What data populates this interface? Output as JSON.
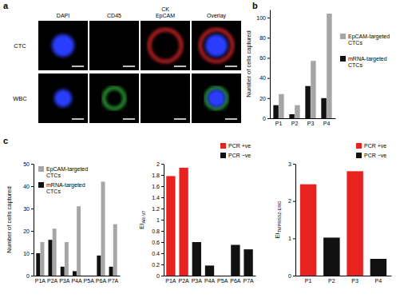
{
  "images": {
    "panel_label": "a",
    "columns": [
      [
        "DAPI"
      ],
      [
        "CD45"
      ],
      [
        "CK",
        "EpCAM"
      ],
      [
        "Overlay"
      ]
    ],
    "rows": [
      "CTC",
      "WBC"
    ]
  },
  "chart_data": [
    {
      "type": "bar",
      "panel_label": "b",
      "categories": [
        "P1",
        "P2",
        "P3",
        "P4"
      ],
      "series": [
        {
          "name": "EpCAM-targeted CTCs",
          "color": "#a6a6a6",
          "values": [
            24,
            13,
            57,
            104
          ]
        },
        {
          "name": "mRNA-targeted CTCs",
          "color": "#111111",
          "values": [
            13,
            4,
            32,
            20
          ]
        }
      ],
      "y_label": "Number of cells captured",
      "ylim": [
        0,
        108
      ],
      "yticks": [
        0,
        20,
        40,
        60,
        80,
        100
      ],
      "legend": "right"
    },
    {
      "type": "bar",
      "panel_label": "c",
      "categories": [
        "P1A",
        "P2A",
        "P3A",
        "P4A",
        "P5A",
        "P6A",
        "P7A"
      ],
      "series": [
        {
          "name": "EpCAM-targeted CTCs",
          "color": "#a6a6a6",
          "values": [
            15,
            21,
            15,
            31,
            0,
            42,
            23
          ]
        },
        {
          "name": "mRNA-targeted CTCs",
          "color": "#111111",
          "values": [
            10,
            16,
            4,
            2,
            0,
            9,
            4
          ]
        }
      ],
      "y_label": "Number of cells captured",
      "ylim": [
        0,
        50
      ],
      "yticks": [
        0,
        10,
        20,
        30,
        40,
        50
      ],
      "legend": "top-left"
    },
    {
      "type": "bar",
      "stacked": true,
      "categories": [
        "P1A",
        "P2A",
        "P3A",
        "P4A",
        "P5A",
        "P6A",
        "P7A"
      ],
      "series": [
        {
          "name": "PCR +ve",
          "color": "#e8231f",
          "values": [
            1.78,
            1.93,
            null,
            null,
            null,
            null,
            null
          ]
        },
        {
          "name": "PCR −ve",
          "color": "#111111",
          "values": [
            null,
            null,
            0.6,
            0.18,
            null,
            0.55,
            0.47
          ]
        }
      ],
      "y_label": "EI",
      "y_label_subscript": "AR-V7",
      "ylim": [
        0,
        2
      ],
      "yticks": [
        0,
        0.2,
        0.4,
        0.6,
        0.8,
        1,
        1.2,
        1.4,
        1.6,
        1.8,
        2
      ],
      "legend": "top-right"
    },
    {
      "type": "bar",
      "stacked": true,
      "categories": [
        "P1",
        "P2",
        "P3",
        "P4"
      ],
      "series": [
        {
          "name": "PCR +ve",
          "color": "#e8231f",
          "values": [
            2.45,
            null,
            2.8,
            null
          ]
        },
        {
          "name": "PCR −ve",
          "color": "#111111",
          "values": [
            null,
            1.02,
            null,
            0.45
          ]
        }
      ],
      "y_label": "EI",
      "y_label_subscript": "TMPRSS2-ERG",
      "ylim": [
        0,
        3
      ],
      "yticks": [
        0,
        1,
        2,
        3
      ],
      "legend": "top-right"
    }
  ]
}
